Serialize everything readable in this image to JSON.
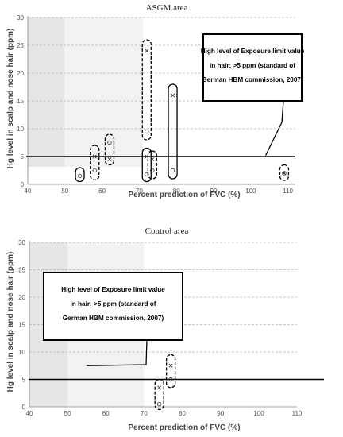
{
  "chart_data": [
    {
      "type": "scatter",
      "title": "ASGM area",
      "xlabel": "Percent prediction of FVC (%)",
      "ylabel": "Hg level in scalp and nose hair (ppm)",
      "xlim": [
        40,
        112
      ],
      "ylim": [
        0,
        30
      ],
      "xticks": [
        "40",
        "50",
        "60",
        "70",
        "80",
        "90",
        "100",
        "110"
      ],
      "yticks": [
        "0",
        "5",
        "10",
        "15",
        "20",
        "25",
        "30"
      ],
      "grid": "horizontal dashed",
      "shaded_bands": [
        [
          40,
          50
        ],
        [
          50,
          71
        ]
      ],
      "threshold": 5,
      "annotation": {
        "lines": [
          "High level of Exposure limit value",
          "in hair: >5 ppm (standard of",
          "German HBM commission, 2007)"
        ],
        "pointer_to": [
          104,
          5.2
        ]
      },
      "points": [
        {
          "x": 54,
          "y": 1.5,
          "marker": "circle"
        },
        {
          "x": 58,
          "y": 2.5,
          "marker": "circle"
        },
        {
          "x": 58,
          "y": 5.0,
          "marker": "cross"
        },
        {
          "x": 62,
          "y": 4.5,
          "marker": "cross"
        },
        {
          "x": 62,
          "y": 7.5,
          "marker": "circle"
        },
        {
          "x": 72,
          "y": 24.0,
          "marker": "cross"
        },
        {
          "x": 72,
          "y": 9.5,
          "marker": "circle"
        },
        {
          "x": 72,
          "y": 5.0,
          "marker": "cross"
        },
        {
          "x": 72,
          "y": 1.8,
          "marker": "circle"
        },
        {
          "x": 73.5,
          "y": 4.5,
          "marker": "cross"
        },
        {
          "x": 73.5,
          "y": 2.5,
          "marker": "circle"
        },
        {
          "x": 79,
          "y": 16.0,
          "marker": "cross"
        },
        {
          "x": 79,
          "y": 2.5,
          "marker": "circle"
        },
        {
          "x": 109,
          "y": 2.0,
          "marker": "circle"
        },
        {
          "x": 109,
          "y": 2.0,
          "marker": "cross"
        }
      ],
      "groups": [
        {
          "x": 54,
          "y1": 0.5,
          "y2": 3.0,
          "style": "solid"
        },
        {
          "x": 58,
          "y1": 0.8,
          "y2": 7.0,
          "style": "dashed"
        },
        {
          "x": 62,
          "y1": 3.5,
          "y2": 9.0,
          "style": "dashed"
        },
        {
          "x": 72,
          "y1": 8.0,
          "y2": 26.0,
          "style": "dashed"
        },
        {
          "x": 72,
          "y1": 0.5,
          "y2": 6.5,
          "style": "solid"
        },
        {
          "x": 73.5,
          "y1": 1.0,
          "y2": 6.0,
          "style": "dashed"
        },
        {
          "x": 79,
          "y1": 1.0,
          "y2": 18.0,
          "style": "solid"
        },
        {
          "x": 109,
          "y1": 0.7,
          "y2": 3.5,
          "style": "dashed"
        }
      ]
    },
    {
      "type": "scatter",
      "title": "Control area",
      "xlabel": "Percent prediction of FVC (%)",
      "ylabel": "Hg level in scalp and nose hair (ppm)",
      "xlim": [
        40,
        110
      ],
      "ylim": [
        0,
        30
      ],
      "xticks": [
        "40",
        "50",
        "60",
        "70",
        "80",
        "90",
        "100",
        "110"
      ],
      "yticks": [
        "0",
        "5",
        "10",
        "15",
        "20",
        "25",
        "30"
      ],
      "grid": "horizontal dashed",
      "shaded_bands": [
        [
          40,
          50
        ],
        [
          50,
          70
        ]
      ],
      "threshold": 5,
      "annotation": {
        "lines": [
          "High level of Exposure limit value",
          "in hair: >5 ppm (standard of",
          "German HBM commission, 2007)"
        ],
        "pointer_to": [
          55,
          7.5
        ]
      },
      "points": [
        {
          "x": 74,
          "y": 3.5,
          "marker": "cross"
        },
        {
          "x": 74,
          "y": 0.5,
          "marker": "circle"
        },
        {
          "x": 77,
          "y": 7.5,
          "marker": "cross"
        },
        {
          "x": 77,
          "y": 5.0,
          "marker": "circle"
        }
      ],
      "groups": [
        {
          "x": 74,
          "y1": -0.5,
          "y2": 5.0,
          "style": "dashed"
        },
        {
          "x": 77,
          "y1": 3.5,
          "y2": 9.5,
          "style": "dashed"
        }
      ]
    }
  ]
}
